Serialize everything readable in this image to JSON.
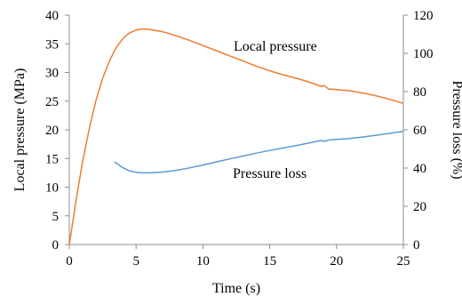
{
  "chart_data": {
    "type": "line",
    "x_axis": {
      "label": "Time (s)",
      "range": [
        0,
        25
      ],
      "ticks": [
        0,
        5,
        10,
        15,
        20,
        25
      ]
    },
    "y_axis_left": {
      "label": "Local pressure (MPa)",
      "range": [
        0,
        40
      ],
      "ticks": [
        0,
        5,
        10,
        15,
        20,
        25,
        30,
        35,
        40
      ]
    },
    "y_axis_right": {
      "label": "Pressure loss (%)",
      "range": [
        0,
        120
      ],
      "ticks": [
        0,
        20,
        40,
        60,
        80,
        100,
        120
      ]
    },
    "grid": false,
    "series": [
      {
        "name": "Local pressure",
        "axis": "left",
        "color": "#ED7D31",
        "x": [
          0,
          0.5,
          1,
          1.5,
          2,
          2.5,
          3,
          3.5,
          4,
          4.5,
          5,
          5.5,
          6,
          6.5,
          7,
          8,
          9,
          10,
          11,
          12,
          13,
          14,
          15,
          16,
          17,
          18,
          18.8,
          19.1,
          19.4,
          19.6,
          20,
          20.5,
          21,
          22,
          23,
          24,
          25
        ],
        "y": [
          0,
          7.6,
          14.5,
          20.3,
          25.2,
          29.0,
          32.0,
          34.3,
          35.9,
          36.9,
          37.4,
          37.6,
          37.5,
          37.3,
          37.1,
          36.4,
          35.6,
          34.7,
          33.8,
          32.9,
          32.0,
          31.1,
          30.3,
          29.6,
          29.0,
          28.3,
          27.6,
          27.7,
          27.1,
          27.1,
          27.0,
          26.9,
          26.8,
          26.4,
          25.9,
          25.3,
          24.6
        ]
      },
      {
        "name": "Pressure loss",
        "axis": "right",
        "color": "#5B9BD5",
        "x": [
          3.4,
          4,
          4.5,
          5,
          5.5,
          6,
          7,
          8,
          9,
          10,
          11,
          12,
          13,
          14,
          15,
          16,
          17,
          18,
          18.8,
          19.1,
          19.5,
          20,
          21,
          22,
          23,
          24,
          25
        ],
        "y": [
          43.2,
          40.2,
          38.5,
          37.8,
          37.5,
          37.5,
          37.9,
          38.8,
          40.1,
          41.6,
          43.2,
          44.8,
          46.3,
          47.8,
          49.2,
          50.5,
          51.8,
          53.2,
          54.4,
          54.0,
          54.8,
          55.0,
          55.5,
          56.3,
          57.2,
          58.2,
          59.2
        ]
      }
    ],
    "annotations": [
      "Local pressure",
      "Pressure loss"
    ]
  }
}
